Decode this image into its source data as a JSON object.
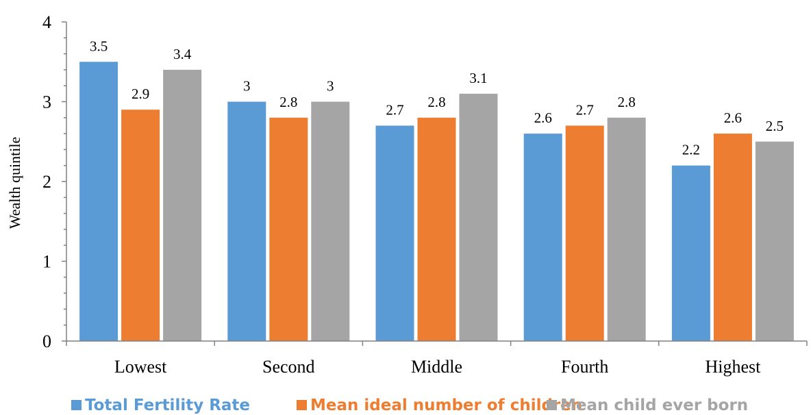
{
  "chart_data": {
    "type": "bar",
    "title": "",
    "xlabel": "",
    "ylabel": "Wealth quintile",
    "ylim": [
      0,
      4
    ],
    "yticks": [
      0,
      1,
      2,
      3,
      4
    ],
    "grid": false,
    "legend_position": "bottom",
    "categories": [
      "Lowest",
      "Second",
      "Middle",
      "Fourth",
      "Highest"
    ],
    "series": [
      {
        "name": "Total Fertility Rate",
        "color": "#5B9BD5",
        "values": [
          3.5,
          3,
          2.7,
          2.6,
          2.2
        ]
      },
      {
        "name": "Mean ideal number of children",
        "color": "#ED7D31",
        "values": [
          2.9,
          2.8,
          2.8,
          2.7,
          2.6
        ]
      },
      {
        "name": "Mean child ever born",
        "color": "#A5A5A5",
        "values": [
          3.4,
          3,
          3.1,
          2.8,
          2.5
        ]
      }
    ]
  }
}
